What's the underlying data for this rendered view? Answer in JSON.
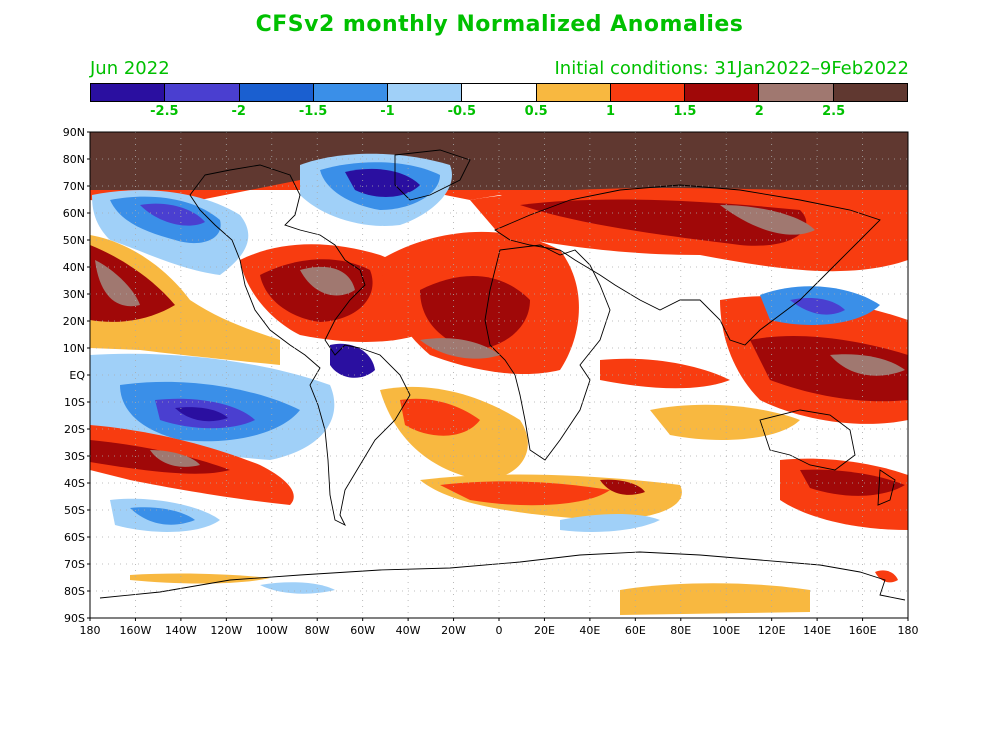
{
  "title": "CFSv2 monthly Normalized Anomalies",
  "subtitle_left": "Jun 2022",
  "subtitle_right": "Initial conditions: 31Jan2022–9Feb2022",
  "colorbar": {
    "colors": [
      "#2a0fa0",
      "#4a3fd0",
      "#1a5fd0",
      "#3a8fe8",
      "#a0d0f8",
      "#ffffff",
      "#f8b840",
      "#f83c10",
      "#a00808",
      "#a07870",
      "#603830"
    ],
    "labels": [
      "-2.5",
      "-2",
      "-1.5",
      "-1",
      "-0.5",
      "0.5",
      "1",
      "1.5",
      "2",
      "2.5"
    ]
  },
  "lat_labels": [
    "90N",
    "80N",
    "70N",
    "60N",
    "50N",
    "40N",
    "30N",
    "20N",
    "10N",
    "EQ",
    "10S",
    "20S",
    "30S",
    "40S",
    "50S",
    "60S",
    "70S",
    "80S",
    "90S"
  ],
  "lon_labels": [
    "180",
    "160W",
    "140W",
    "120W",
    "100W",
    "80W",
    "60W",
    "40W",
    "20W",
    "0",
    "20E",
    "40E",
    "60E",
    "80E",
    "100E",
    "120E",
    "140E",
    "160E",
    "180"
  ]
}
